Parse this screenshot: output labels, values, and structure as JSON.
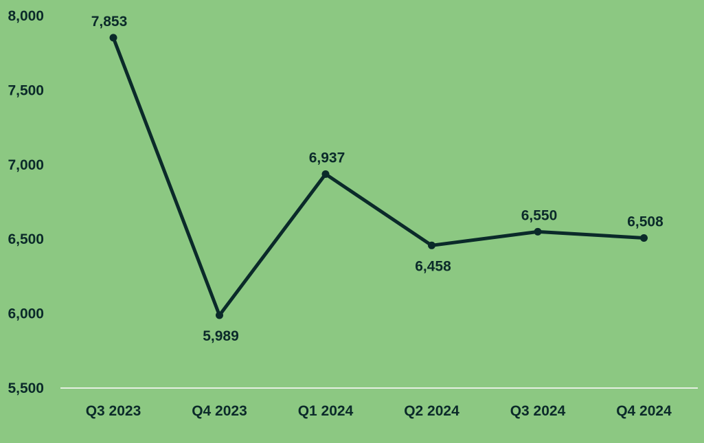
{
  "chart_data": {
    "type": "line",
    "title": "",
    "xlabel": "",
    "ylabel": "",
    "categories": [
      "Q3 2023",
      "Q4 2023",
      "Q1 2024",
      "Q2 2024",
      "Q3 2024",
      "Q4 2024"
    ],
    "series": [
      {
        "values": [
          7853,
          5989,
          6937,
          6458,
          6550,
          6508
        ],
        "data_labels": [
          "7,853",
          "5,989",
          "6,937",
          "6,458",
          "6,550",
          "6,508"
        ]
      }
    ],
    "ylim": [
      5500,
      8000
    ],
    "y_ticks": [
      5500,
      6000,
      6500,
      7000,
      7500,
      8000
    ],
    "y_tick_labels": [
      "5,500",
      "6,000",
      "6,500",
      "7,000",
      "7,500",
      "8,000"
    ],
    "grid": false,
    "legend": "none"
  },
  "colors": {
    "background": "#8cc882",
    "line": "#0b2a2a",
    "text": "#0b2a2a",
    "axis": "#e4efe1"
  }
}
